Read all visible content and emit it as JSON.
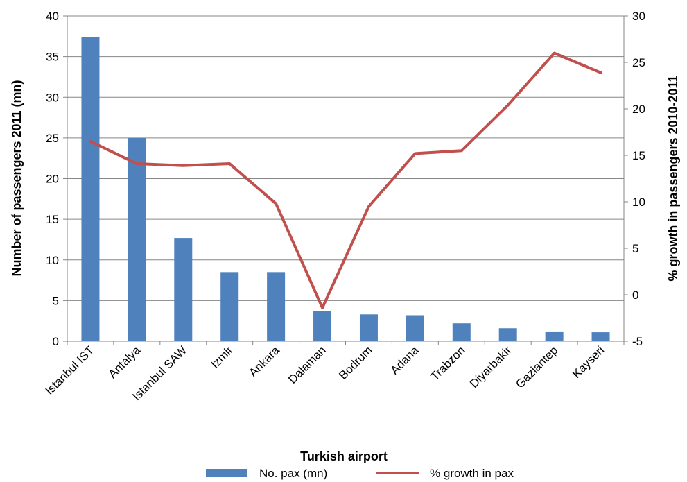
{
  "chart_data": {
    "type": "bar",
    "categories": [
      "Istanbul IST",
      "Antalya",
      "Istanbul SAW",
      "Izmir",
      "Ankara",
      "Dalaman",
      "Bodrum",
      "Adana",
      "Trabzon",
      "Diyarbakir",
      "Gaziantep",
      "Kayseri"
    ],
    "series": [
      {
        "name": "No. pax (mn)",
        "type": "bar",
        "axis": "left",
        "color": "#4F81BD",
        "values": [
          37.4,
          25.0,
          12.7,
          8.5,
          8.5,
          3.7,
          3.3,
          3.2,
          2.2,
          1.6,
          1.2,
          1.1
        ]
      },
      {
        "name": "% growth in pax",
        "type": "line",
        "axis": "right",
        "color": "#C0504D",
        "values": [
          16.5,
          14.1,
          13.9,
          14.1,
          9.8,
          -1.4,
          9.5,
          15.2,
          15.5,
          20.4,
          26.0,
          23.9
        ]
      }
    ],
    "xlabel": "Turkish airport",
    "ylabel": "Number of passengers 2011 (mn)",
    "y2label": "% growth in passengers 2010-2011",
    "ylim": [
      0,
      40
    ],
    "y2lim": [
      -5,
      30
    ],
    "yticks": [
      "0",
      "5",
      "10",
      "15",
      "20",
      "25",
      "30",
      "35",
      "40"
    ],
    "y2ticks": [
      "-5",
      "0",
      "5",
      "10",
      "15",
      "20",
      "25",
      "30"
    ],
    "grid": true,
    "legend_position": "bottom"
  }
}
